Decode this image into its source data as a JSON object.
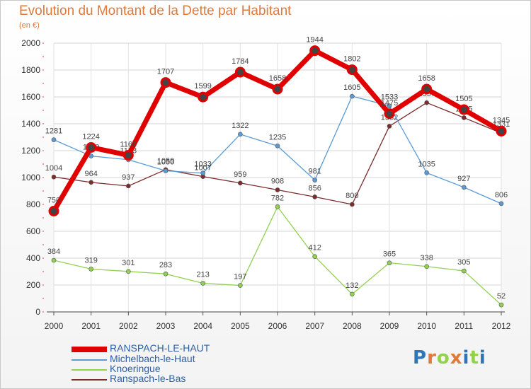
{
  "title": "Evolution du Montant de la Dette par Habitant",
  "subtitle": "(en €)",
  "brand": "Proxiti",
  "colors": {
    "RANSPACH-LE-HAUT": "#e00000",
    "Michelbach-le-Haut": "#5b9bd5",
    "Knoeringue": "#92d050",
    "Ranspach-le-Bas": "#7b2c2c",
    "brand_letters": [
      "#2e75b6",
      "#e07a3a",
      "#92d050",
      "#e07a3a",
      "#2e75b6",
      "#92d050",
      "#2e75b6"
    ]
  },
  "chart_data": {
    "type": "line",
    "title": "Evolution du Montant de la Dette par Habitant",
    "subtitle": "(en €)",
    "x": [
      "2000",
      "2001",
      "2002",
      "2003",
      "2004",
      "2005",
      "2006",
      "2007",
      "2008",
      "2009",
      "2010",
      "2011",
      "2012"
    ],
    "ylim": [
      0,
      2000
    ],
    "yticks": [
      0,
      200,
      400,
      600,
      800,
      1000,
      1200,
      1400,
      1600,
      1800,
      2000
    ],
    "grid": true,
    "legend_position": "bottom-left",
    "series": [
      {
        "name": "RANSPACH-LE-HAUT",
        "values": [
          750,
          1224,
          1166,
          1707,
          1599,
          1784,
          1658,
          1944,
          1802,
          1475,
          1658,
          1505,
          1345
        ]
      },
      {
        "name": "Michelbach-le-Haut",
        "values": [
          1281,
          1160,
          1133,
          1050,
          1033,
          1322,
          1235,
          981,
          1605,
          1533,
          1035,
          927,
          806
        ]
      },
      {
        "name": "Knoeringue",
        "values": [
          384,
          319,
          301,
          283,
          213,
          197,
          782,
          412,
          132,
          365,
          338,
          305,
          52
        ]
      },
      {
        "name": "Ranspach-le-Bas",
        "values": [
          1004,
          964,
          937,
          1059,
          1007,
          959,
          908,
          856,
          800,
          1382,
          1557,
          1445,
          1331
        ]
      }
    ]
  }
}
